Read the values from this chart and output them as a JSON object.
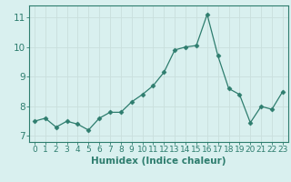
{
  "x": [
    0,
    1,
    2,
    3,
    4,
    5,
    6,
    7,
    8,
    9,
    10,
    11,
    12,
    13,
    14,
    15,
    16,
    17,
    18,
    19,
    20,
    21,
    22,
    23
  ],
  "y": [
    7.5,
    7.6,
    7.3,
    7.5,
    7.4,
    7.2,
    7.6,
    7.8,
    7.8,
    8.15,
    8.4,
    8.7,
    9.15,
    9.9,
    10.0,
    10.05,
    11.1,
    9.7,
    8.6,
    8.4,
    7.45,
    8.0,
    7.9,
    8.5
  ],
  "line_color": "#2e7d6e",
  "marker": "D",
  "marker_size": 2.5,
  "bg_color": "#d9f0ef",
  "grid_color": "#c9dfdc",
  "xlabel": "Humidex (Indice chaleur)",
  "xlim": [
    -0.5,
    23.5
  ],
  "ylim": [
    6.8,
    11.4
  ],
  "yticks": [
    7,
    8,
    9,
    10,
    11
  ],
  "xticks": [
    0,
    1,
    2,
    3,
    4,
    5,
    6,
    7,
    8,
    9,
    10,
    11,
    12,
    13,
    14,
    15,
    16,
    17,
    18,
    19,
    20,
    21,
    22,
    23
  ],
  "tick_color": "#2e7d6e",
  "label_color": "#2e7d6e",
  "font_size": 6.5,
  "xlabel_fontsize": 7.5
}
